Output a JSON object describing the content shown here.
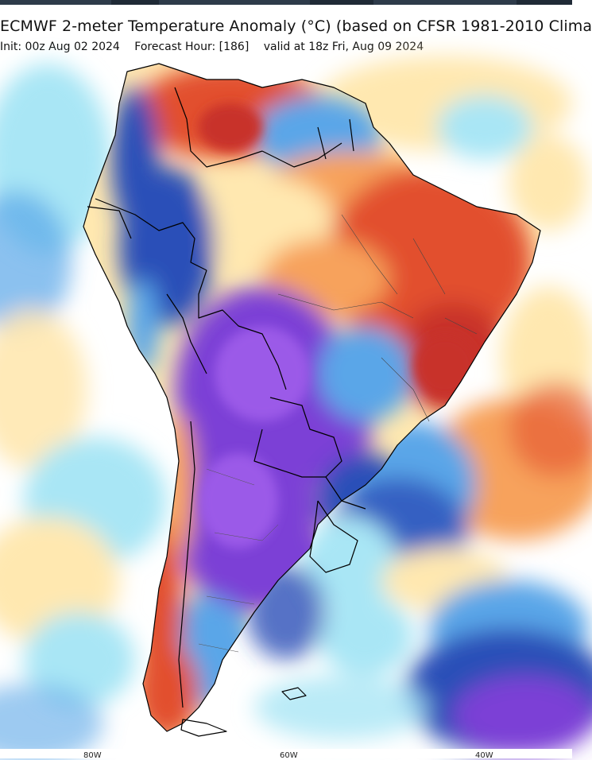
{
  "title": "ECMWF 2-meter Temperature Anomaly (°C) (based on CFSR 1981-2010 Clima",
  "subtitle": {
    "init": "Init: 00z Aug 02 2024",
    "forecast_hour": "Forecast Hour: [186]",
    "valid": "valid at 18z Fri, Aug 09 2024"
  },
  "longitude_labels": [
    "80W",
    "60W",
    "40W"
  ],
  "colors": {
    "strong_cold": "#7b3fd6",
    "cold": "#2a4fb8",
    "cool": "#5aa6e8",
    "light_cool": "#a9e6f5",
    "neutral": "#ffffff",
    "light_warm": "#ffe8b0",
    "warm": "#f7a25c",
    "hot": "#e2502e",
    "very_hot": "#c8322a",
    "border": "#000000"
  }
}
